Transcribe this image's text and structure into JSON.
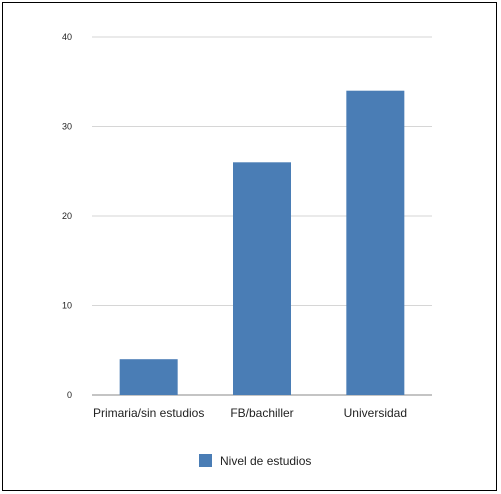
{
  "chart_data": {
    "type": "bar",
    "categories": [
      "Primaria/sin estudios",
      "FB/bachiller",
      "Universidad"
    ],
    "series": [
      {
        "name": "Nivel de estudios",
        "values": [
          4,
          26,
          34
        ],
        "color": "#4a7db5"
      }
    ],
    "yticks": [
      "0",
      "10",
      "20",
      "30",
      "40"
    ],
    "ylim": [
      0,
      40
    ],
    "grid": true,
    "legend": "bottom"
  }
}
